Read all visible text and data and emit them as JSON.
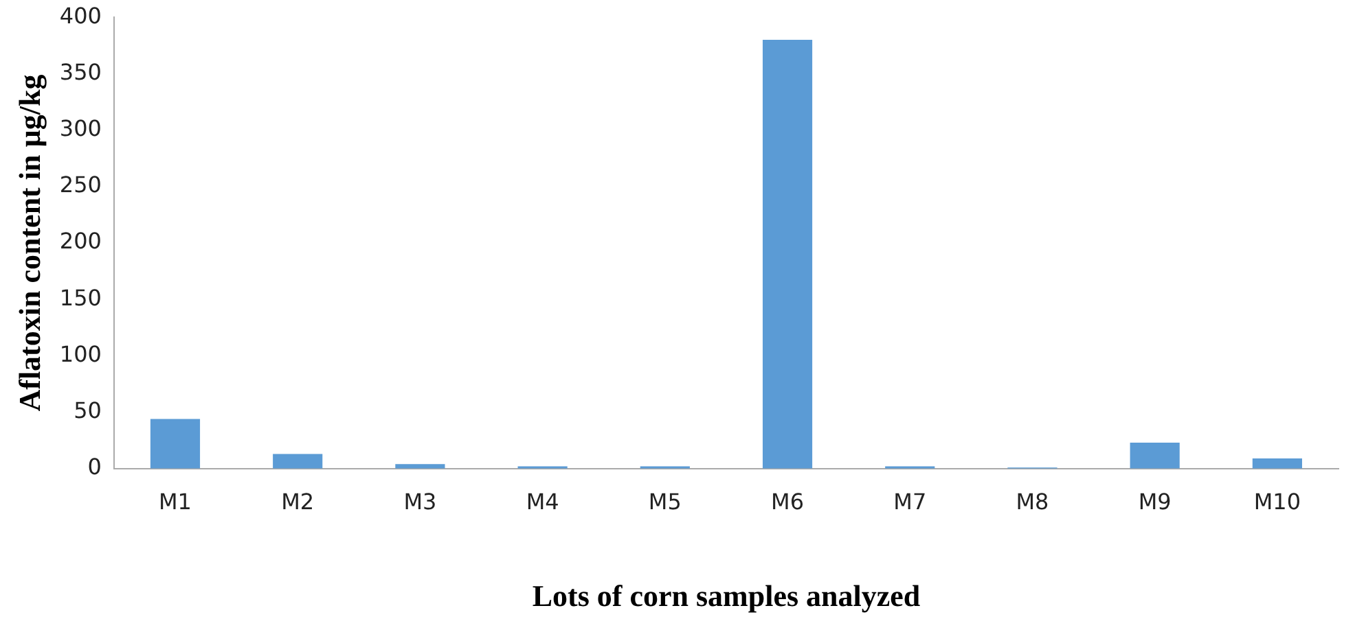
{
  "chart_data": {
    "type": "bar",
    "xlabel": "Lots of corn samples analyzed",
    "ylabel": "Aflatoxin content in µg/kg",
    "categories": [
      "M1",
      "M2",
      "M3",
      "M4",
      "M5",
      "M6",
      "M7",
      "M8",
      "M9",
      "M10"
    ],
    "values": [
      44,
      13,
      4,
      2,
      2,
      380,
      2,
      1,
      23,
      9
    ],
    "color": "#5b9bd5",
    "ylim": [
      0,
      400
    ],
    "yticks": [
      0,
      50,
      100,
      150,
      200,
      250,
      300,
      350,
      400
    ],
    "grid": false,
    "legend": false
  }
}
